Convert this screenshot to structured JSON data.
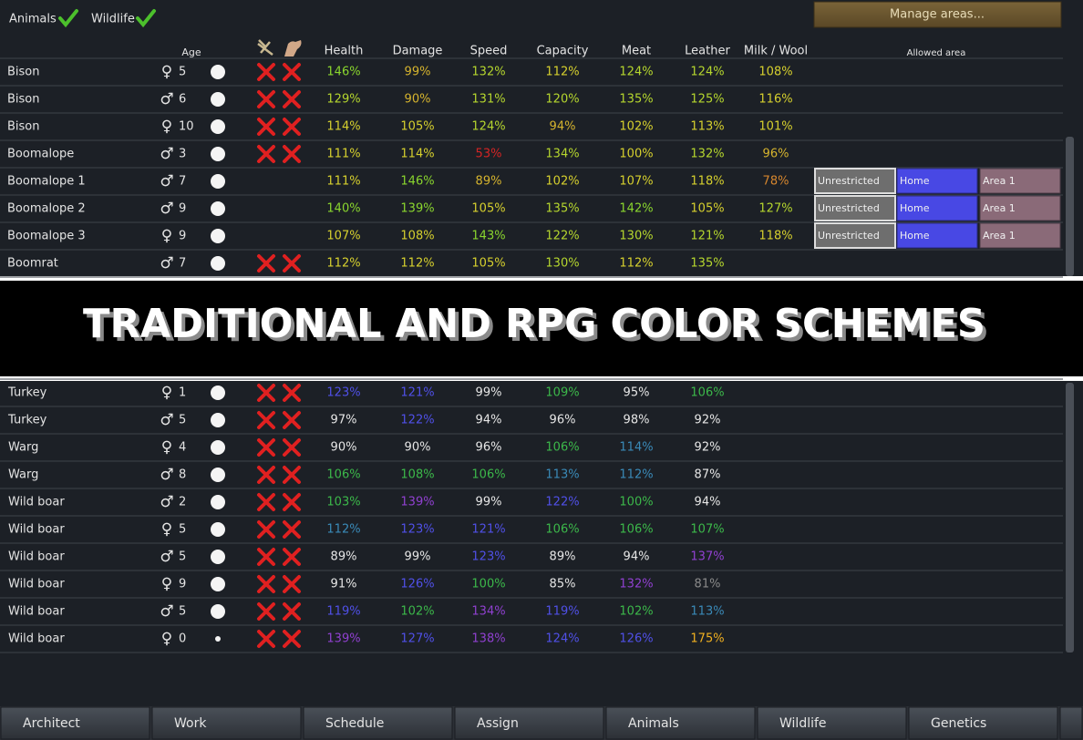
{
  "header": {
    "filters": [
      "Animals",
      "Wildlife"
    ],
    "manage_button": "Manage areas..."
  },
  "columns": {
    "age": "Age",
    "stats": [
      "Health",
      "Damage",
      "Speed",
      "Capacity",
      "Meat",
      "Leather",
      "Milk / Wool"
    ],
    "allowed_area": "Allowed area"
  },
  "top_rows": [
    {
      "name": "Bison",
      "sex": "♀",
      "age": 5,
      "restricted": true,
      "stats": [
        {
          "text": "146%",
          "color": "#8ad62e"
        },
        {
          "text": "99%",
          "color": "#d6b42e"
        },
        {
          "text": "132%",
          "color": "#b5d62e"
        },
        {
          "text": "112%",
          "color": "#d6d02e"
        },
        {
          "text": "124%",
          "color": "#b5d62e"
        },
        {
          "text": "124%",
          "color": "#b5d62e"
        },
        {
          "text": "108%",
          "color": "#d6d02e"
        }
      ]
    },
    {
      "name": "Bison",
      "sex": "♂",
      "age": 6,
      "restricted": true,
      "stats": [
        {
          "text": "129%",
          "color": "#b5d62e"
        },
        {
          "text": "90%",
          "color": "#d6b42e"
        },
        {
          "text": "131%",
          "color": "#b5d62e"
        },
        {
          "text": "120%",
          "color": "#b5d62e"
        },
        {
          "text": "135%",
          "color": "#b5d62e"
        },
        {
          "text": "125%",
          "color": "#b5d62e"
        },
        {
          "text": "116%",
          "color": "#d6d02e"
        }
      ]
    },
    {
      "name": "Bison",
      "sex": "♀",
      "age": 10,
      "restricted": true,
      "stats": [
        {
          "text": "114%",
          "color": "#d6d02e"
        },
        {
          "text": "105%",
          "color": "#d6d02e"
        },
        {
          "text": "124%",
          "color": "#b5d62e"
        },
        {
          "text": "94%",
          "color": "#d6b42e"
        },
        {
          "text": "102%",
          "color": "#d6d02e"
        },
        {
          "text": "113%",
          "color": "#d6d02e"
        },
        {
          "text": "101%",
          "color": "#d6d02e"
        }
      ]
    },
    {
      "name": "Boomalope",
      "sex": "♂",
      "age": 3,
      "restricted": true,
      "stats": [
        {
          "text": "111%",
          "color": "#d6d02e"
        },
        {
          "text": "114%",
          "color": "#d6d02e"
        },
        {
          "text": "53%",
          "color": "#d42424"
        },
        {
          "text": "134%",
          "color": "#b5d62e"
        },
        {
          "text": "100%",
          "color": "#d6d02e"
        },
        {
          "text": "132%",
          "color": "#b5d62e"
        },
        {
          "text": "96%",
          "color": "#d6b42e"
        }
      ]
    },
    {
      "name": "Boomalope 1",
      "sex": "♂",
      "age": 7,
      "restricted": false,
      "areas": [
        "Unrestricted",
        "Home",
        "Area 1"
      ],
      "stats": [
        {
          "text": "111%",
          "color": "#d6d02e"
        },
        {
          "text": "146%",
          "color": "#8ad62e"
        },
        {
          "text": "89%",
          "color": "#d6b42e"
        },
        {
          "text": "102%",
          "color": "#d6d02e"
        },
        {
          "text": "107%",
          "color": "#d6d02e"
        },
        {
          "text": "118%",
          "color": "#d6d02e"
        },
        {
          "text": "78%",
          "color": "#d6862e"
        }
      ]
    },
    {
      "name": "Boomalope 2",
      "sex": "♂",
      "age": 9,
      "restricted": false,
      "areas": [
        "Unrestricted",
        "Home",
        "Area 1"
      ],
      "stats": [
        {
          "text": "140%",
          "color": "#8ad62e"
        },
        {
          "text": "139%",
          "color": "#8ad62e"
        },
        {
          "text": "105%",
          "color": "#d6d02e"
        },
        {
          "text": "135%",
          "color": "#b5d62e"
        },
        {
          "text": "142%",
          "color": "#8ad62e"
        },
        {
          "text": "105%",
          "color": "#d6d02e"
        },
        {
          "text": "127%",
          "color": "#b5d62e"
        }
      ]
    },
    {
      "name": "Boomalope 3",
      "sex": "♀",
      "age": 9,
      "restricted": false,
      "areas": [
        "Unrestricted",
        "Home",
        "Area 1"
      ],
      "stats": [
        {
          "text": "107%",
          "color": "#d6d02e"
        },
        {
          "text": "108%",
          "color": "#d6d02e"
        },
        {
          "text": "143%",
          "color": "#8ad62e"
        },
        {
          "text": "122%",
          "color": "#b5d62e"
        },
        {
          "text": "130%",
          "color": "#b5d62e"
        },
        {
          "text": "121%",
          "color": "#b5d62e"
        },
        {
          "text": "118%",
          "color": "#d6d02e"
        }
      ]
    },
    {
      "name": "Boomrat",
      "sex": "♂",
      "age": 7,
      "restricted": true,
      "stats": [
        {
          "text": "112%",
          "color": "#d6d02e"
        },
        {
          "text": "112%",
          "color": "#d6d02e"
        },
        {
          "text": "105%",
          "color": "#d6d02e"
        },
        {
          "text": "130%",
          "color": "#b5d62e"
        },
        {
          "text": "112%",
          "color": "#d6d02e"
        },
        {
          "text": "135%",
          "color": "#b5d62e"
        }
      ]
    }
  ],
  "banner": "TRADITIONAL AND RPG COLOR SCHEMES",
  "bottom_rows": [
    {
      "name": "Turkey",
      "sex": "♀",
      "age": 1,
      "restricted": true,
      "stats": [
        {
          "text": "123%",
          "color": "#5050e8"
        },
        {
          "text": "121%",
          "color": "#5050e8"
        },
        {
          "text": "99%",
          "color": "#e6e6e6"
        },
        {
          "text": "109%",
          "color": "#3cb84a"
        },
        {
          "text": "95%",
          "color": "#e6e6e6"
        },
        {
          "text": "106%",
          "color": "#3cb84a"
        }
      ]
    },
    {
      "name": "Turkey",
      "sex": "♂",
      "age": 5,
      "restricted": true,
      "stats": [
        {
          "text": "97%",
          "color": "#e6e6e6"
        },
        {
          "text": "122%",
          "color": "#5050e8"
        },
        {
          "text": "94%",
          "color": "#e6e6e6"
        },
        {
          "text": "96%",
          "color": "#e6e6e6"
        },
        {
          "text": "98%",
          "color": "#e6e6e6"
        },
        {
          "text": "92%",
          "color": "#e6e6e6"
        }
      ]
    },
    {
      "name": "Warg",
      "sex": "♀",
      "age": 4,
      "restricted": true,
      "stats": [
        {
          "text": "90%",
          "color": "#e6e6e6"
        },
        {
          "text": "90%",
          "color": "#e6e6e6"
        },
        {
          "text": "96%",
          "color": "#e6e6e6"
        },
        {
          "text": "106%",
          "color": "#3cb84a"
        },
        {
          "text": "114%",
          "color": "#3a8ab8"
        },
        {
          "text": "92%",
          "color": "#e6e6e6"
        }
      ]
    },
    {
      "name": "Warg",
      "sex": "♂",
      "age": 8,
      "restricted": true,
      "stats": [
        {
          "text": "106%",
          "color": "#3cb84a"
        },
        {
          "text": "108%",
          "color": "#3cb84a"
        },
        {
          "text": "106%",
          "color": "#3cb84a"
        },
        {
          "text": "113%",
          "color": "#3a8ab8"
        },
        {
          "text": "112%",
          "color": "#3a8ab8"
        },
        {
          "text": "87%",
          "color": "#e6e6e6"
        }
      ]
    },
    {
      "name": "Wild boar",
      "sex": "♂",
      "age": 2,
      "restricted": true,
      "stats": [
        {
          "text": "103%",
          "color": "#3cb84a"
        },
        {
          "text": "139%",
          "color": "#9040d0"
        },
        {
          "text": "99%",
          "color": "#e6e6e6"
        },
        {
          "text": "122%",
          "color": "#5050e8"
        },
        {
          "text": "100%",
          "color": "#3cb84a"
        },
        {
          "text": "94%",
          "color": "#e6e6e6"
        }
      ]
    },
    {
      "name": "Wild boar",
      "sex": "♀",
      "age": 5,
      "restricted": true,
      "stats": [
        {
          "text": "112%",
          "color": "#3a8ab8"
        },
        {
          "text": "123%",
          "color": "#5050e8"
        },
        {
          "text": "121%",
          "color": "#5050e8"
        },
        {
          "text": "106%",
          "color": "#3cb84a"
        },
        {
          "text": "106%",
          "color": "#3cb84a"
        },
        {
          "text": "107%",
          "color": "#3cb84a"
        }
      ]
    },
    {
      "name": "Wild boar",
      "sex": "♂",
      "age": 5,
      "restricted": true,
      "stats": [
        {
          "text": "89%",
          "color": "#e6e6e6"
        },
        {
          "text": "99%",
          "color": "#e6e6e6"
        },
        {
          "text": "123%",
          "color": "#5050e8"
        },
        {
          "text": "89%",
          "color": "#e6e6e6"
        },
        {
          "text": "94%",
          "color": "#e6e6e6"
        },
        {
          "text": "137%",
          "color": "#9040d0"
        }
      ]
    },
    {
      "name": "Wild boar",
      "sex": "♀",
      "age": 9,
      "restricted": true,
      "stats": [
        {
          "text": "91%",
          "color": "#e6e6e6"
        },
        {
          "text": "126%",
          "color": "#5050e8"
        },
        {
          "text": "100%",
          "color": "#3cb84a"
        },
        {
          "text": "85%",
          "color": "#e6e6e6"
        },
        {
          "text": "132%",
          "color": "#9040d0"
        },
        {
          "text": "81%",
          "color": "#8a8a8a"
        }
      ]
    },
    {
      "name": "Wild boar",
      "sex": "♂",
      "age": 5,
      "restricted": true,
      "stats": [
        {
          "text": "119%",
          "color": "#5050e8"
        },
        {
          "text": "102%",
          "color": "#3cb84a"
        },
        {
          "text": "134%",
          "color": "#9040d0"
        },
        {
          "text": "119%",
          "color": "#5050e8"
        },
        {
          "text": "102%",
          "color": "#3cb84a"
        },
        {
          "text": "113%",
          "color": "#3a8ab8"
        }
      ]
    },
    {
      "name": "Wild boar",
      "sex": "♀",
      "age": 0,
      "restricted": true,
      "small_dot": true,
      "stats": [
        {
          "text": "139%",
          "color": "#9040d0"
        },
        {
          "text": "127%",
          "color": "#5050e8"
        },
        {
          "text": "138%",
          "color": "#9040d0"
        },
        {
          "text": "124%",
          "color": "#5050e8"
        },
        {
          "text": "126%",
          "color": "#5050e8"
        },
        {
          "text": "175%",
          "color": "#f0b020"
        }
      ]
    }
  ],
  "tabs": [
    "Architect",
    "Work",
    "Schedule",
    "Assign",
    "Animals",
    "Wildlife",
    "Genetics"
  ]
}
